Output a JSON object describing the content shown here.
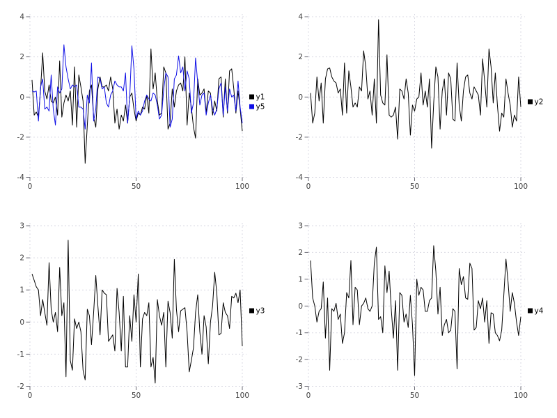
{
  "page": {
    "background": "#ffffff"
  },
  "style": {
    "grid_color": "#d9d9e3",
    "tick_color": "#6b6b75",
    "label_color": "#3c3c3c",
    "legend_text_color": "#000000",
    "line_black": "#000000",
    "line_blue": "#0f0fe6"
  },
  "chart_data": [
    {
      "id": "top-left",
      "type": "line",
      "title": "",
      "xlabel": "",
      "ylabel": "",
      "xlim": [
        0,
        102
      ],
      "ylim": [
        -4,
        4
      ],
      "xticks": [
        0,
        50,
        100
      ],
      "yticks": [
        -4,
        -2,
        0,
        2,
        4
      ],
      "grid": true,
      "legend_position": "right-center",
      "series": [
        {
          "name": "y1",
          "color": "#000000",
          "values": [
            0.85,
            -0.9,
            -0.75,
            -1.0,
            0.4,
            2.2,
            0.3,
            -0.1,
            0.6,
            -0.2,
            -0.3,
            0.0,
            -0.9,
            1.8,
            -1.0,
            -0.3,
            0.1,
            -0.2,
            0.3,
            -1.4,
            1.5,
            -1.5,
            1.1,
            0.5,
            -0.2,
            -3.3,
            -1.4,
            0.3,
            0.6,
            -1.0,
            -1.5,
            0.4,
            1.0,
            0.5,
            0.5,
            0.6,
            0.3,
            1.0,
            0.4,
            -1.3,
            -0.6,
            -1.6,
            -0.9,
            -1.2,
            -0.4,
            -1.3,
            0.0,
            0.2,
            -0.6,
            -1.2,
            -0.8,
            -0.9,
            -0.5,
            -0.6,
            0.1,
            -0.8,
            2.4,
            0.4,
            1.2,
            -0.2,
            -0.9,
            -0.8,
            1.5,
            1.2,
            -1.6,
            -1.3,
            0.4,
            -0.5,
            0.3,
            0.6,
            0.7,
            0.3,
            2.0,
            -1.4,
            0.2,
            -0.5,
            -1.5,
            -2.05,
            0.9,
            0.1,
            0.2,
            0.4,
            -0.8,
            0.3,
            0.2,
            -0.9,
            -0.2,
            -0.7,
            0.9,
            1.0,
            -1.0,
            0.9,
            -0.8,
            1.3,
            1.4,
            0.4,
            -0.8,
            0.3,
            -0.6,
            -1.7
          ]
        },
        {
          "name": "y5",
          "color": "#0f0fe6",
          "values": [
            0.3,
            0.25,
            0.3,
            -1.2,
            0.5,
            0.9,
            -0.6,
            -0.5,
            -0.7,
            1.1,
            -0.6,
            -1.4,
            0.5,
            0.2,
            0.4,
            2.6,
            1.5,
            0.9,
            0.4,
            0.6,
            0.5,
            0.6,
            -0.5,
            -0.5,
            -0.6,
            -1.6,
            0.1,
            -0.3,
            1.7,
            -1.2,
            -0.6,
            1.0,
            0.9,
            0.4,
            0.5,
            -0.3,
            -0.5,
            0.1,
            0.3,
            0.8,
            0.6,
            0.5,
            0.5,
            0.3,
            1.2,
            -1.3,
            0.0,
            2.55,
            1.4,
            -1.1,
            -0.7,
            -0.9,
            -0.7,
            -0.2,
            0.1,
            -0.1,
            -0.2,
            0.2,
            0.1,
            -0.4,
            -1.1,
            -0.9,
            0.4,
            1.2,
            1.0,
            -1.5,
            -1.1,
            0.9,
            1.1,
            2.05,
            1.2,
            1.5,
            0.3,
            1.3,
            0.9,
            -0.8,
            -0.3,
            1.95,
            0.7,
            -0.4,
            0.1,
            0.2,
            -0.9,
            -0.3,
            0.1,
            -0.6,
            -0.9,
            -0.6,
            0.4,
            0.7,
            -0.9,
            0.5,
            -0.7,
            0.4,
            0.0,
            0.1,
            -0.7,
            0.8,
            -0.5,
            -1.3
          ]
        }
      ]
    },
    {
      "id": "top-right",
      "type": "line",
      "title": "",
      "xlabel": "",
      "ylabel": "",
      "xlim": [
        0,
        102
      ],
      "ylim": [
        -4,
        4
      ],
      "xticks": [
        0,
        50,
        100
      ],
      "yticks": [
        -4,
        -2,
        0,
        2,
        4
      ],
      "grid": true,
      "legend_position": "right-center",
      "series": [
        {
          "name": "y2",
          "color": "#000000",
          "values": [
            0.2,
            -1.3,
            -0.8,
            1.0,
            -0.2,
            0.7,
            -1.3,
            0.9,
            1.4,
            1.45,
            1.0,
            0.8,
            0.7,
            0.2,
            0.4,
            -0.9,
            1.7,
            -0.8,
            1.3,
            0.5,
            -0.5,
            -0.3,
            -0.5,
            0.5,
            0.3,
            2.3,
            1.5,
            -0.1,
            0.3,
            -0.9,
            0.9,
            -1.3,
            3.85,
            0.1,
            -0.3,
            -0.4,
            2.1,
            -0.9,
            -1.0,
            -0.9,
            -0.5,
            -2.1,
            0.4,
            0.3,
            -0.1,
            0.9,
            0.2,
            -1.9,
            -0.4,
            -0.7,
            -0.1,
            0.0,
            1.2,
            -0.4,
            0.3,
            -0.5,
            0.9,
            -2.55,
            -0.3,
            1.5,
            1.0,
            -1.6,
            0.3,
            0.9,
            -0.9,
            1.2,
            0.9,
            -1.1,
            -1.2,
            1.7,
            -0.4,
            -1.2,
            0.3,
            1.0,
            1.1,
            0.2,
            -0.1,
            0.5,
            0.3,
            0.1,
            -0.9,
            1.9,
            0.8,
            -0.5,
            2.4,
            1.5,
            -0.3,
            1.2,
            -0.4,
            -1.7,
            -0.8,
            -1.0,
            0.9,
            0.2,
            -0.4,
            -1.5,
            -0.9,
            -1.2,
            1.0,
            -0.5
          ]
        }
      ]
    },
    {
      "id": "bottom-left",
      "type": "line",
      "title": "",
      "xlabel": "",
      "ylabel": "",
      "xlim": [
        0,
        102
      ],
      "ylim": [
        -2,
        3
      ],
      "xticks": [
        0,
        50,
        100
      ],
      "yticks": [
        -2,
        -1,
        0,
        1,
        2,
        3
      ],
      "grid": true,
      "legend_position": "right-center",
      "series": [
        {
          "name": "y3",
          "color": "#000000",
          "values": [
            1.5,
            1.3,
            1.1,
            1.0,
            0.2,
            0.7,
            0.3,
            -0.1,
            1.85,
            0.4,
            0.0,
            0.3,
            -0.3,
            1.7,
            0.2,
            0.6,
            -1.7,
            2.55,
            -1.2,
            -1.5,
            0.1,
            -0.2,
            0.0,
            -0.3,
            -1.5,
            -1.8,
            0.4,
            0.2,
            -0.7,
            0.3,
            1.45,
            0.5,
            -0.4,
            1.0,
            0.9,
            0.85,
            -0.6,
            -0.5,
            -0.4,
            -0.9,
            1.05,
            0.3,
            -0.9,
            0.8,
            -1.4,
            -1.4,
            0.2,
            -0.6,
            0.85,
            0.0,
            1.5,
            -1.4,
            0.1,
            0.3,
            0.2,
            0.6,
            -1.4,
            -1.1,
            -1.9,
            0.7,
            0.2,
            -0.1,
            0.3,
            -1.4,
            0.65,
            0.3,
            -0.5,
            1.95,
            0.4,
            -0.3,
            0.35,
            0.4,
            0.45,
            -0.3,
            -1.55,
            -1.2,
            -0.8,
            0.3,
            0.85,
            -0.3,
            -1.0,
            0.2,
            -0.15,
            -1.3,
            0.0,
            0.5,
            1.55,
            0.9,
            -0.4,
            -0.35,
            0.6,
            0.3,
            0.2,
            -0.2,
            0.8,
            0.75,
            0.9,
            0.6,
            1.0,
            -0.75
          ]
        }
      ]
    },
    {
      "id": "bottom-right",
      "type": "line",
      "title": "",
      "xlabel": "",
      "ylabel": "",
      "xlim": [
        0,
        102
      ],
      "ylim": [
        -3,
        3
      ],
      "xticks": [
        0,
        50,
        100
      ],
      "yticks": [
        -3,
        -2,
        -1,
        0,
        1,
        2,
        3
      ],
      "grid": true,
      "legend_position": "right-center",
      "series": [
        {
          "name": "y4",
          "color": "#000000",
          "values": [
            1.7,
            0.3,
            0.0,
            -0.6,
            -0.2,
            -0.1,
            0.9,
            -1.2,
            0.3,
            -2.4,
            -0.1,
            -0.2,
            0.1,
            -0.5,
            -0.3,
            -1.4,
            -1.0,
            0.5,
            0.3,
            1.7,
            -0.7,
            0.7,
            0.6,
            -0.7,
            0.0,
            0.1,
            0.3,
            -0.1,
            -0.2,
            0.0,
            1.6,
            2.2,
            -0.5,
            -0.4,
            -1.0,
            1.5,
            0.5,
            1.3,
            -0.1,
            -1.2,
            0.2,
            -2.4,
            0.5,
            0.4,
            -0.6,
            -0.3,
            -0.8,
            0.4,
            -0.7,
            -2.6,
            1.0,
            0.4,
            0.7,
            0.6,
            -0.2,
            -0.2,
            0.2,
            0.3,
            2.25,
            1.3,
            -0.3,
            0.7,
            -1.1,
            -0.7,
            -0.5,
            -1.0,
            -0.9,
            -0.1,
            -0.2,
            -2.35,
            1.4,
            0.8,
            1.1,
            0.3,
            0.25,
            1.6,
            1.4,
            -0.9,
            -0.8,
            0.2,
            -0.1,
            0.3,
            -0.6,
            0.2,
            -1.4,
            -0.25,
            -0.3,
            -1.0,
            -1.1,
            -1.3,
            -0.9,
            0.4,
            1.75,
            0.9,
            -0.2,
            0.5,
            0.1,
            -0.6,
            -1.1,
            -0.4
          ]
        }
      ]
    }
  ]
}
